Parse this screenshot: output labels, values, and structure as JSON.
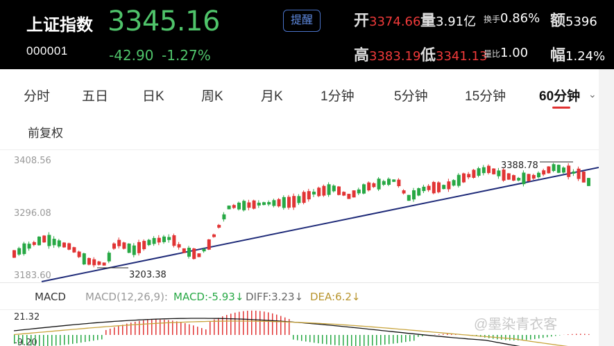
{
  "header": {
    "name": "上证指数",
    "code": "000001",
    "price": "3345.16",
    "change": "-42.90",
    "change_pct": "-1.27%",
    "alert_label": "提醒",
    "stats": {
      "open_label": "开",
      "open_value": "3374.66",
      "volume_label": "量",
      "volume_value": "3.91亿",
      "turnover_label": "换手",
      "turnover_value": "0.86%",
      "amount_label": "额",
      "amount_value": "5396",
      "high_label": "高",
      "high_value": "3383.19",
      "low_label": "低",
      "low_value": "3341.13",
      "ratio_label": "量比",
      "ratio_value": "1.00",
      "amp_label": "幅",
      "amp_value": "1.24%"
    }
  },
  "tabs": [
    "分时",
    "五日",
    "日K",
    "周K",
    "月K",
    "1分钟",
    "5分钟",
    "15分钟",
    "60分钟"
  ],
  "active_tab": "60分钟",
  "adjust_label": "前复权",
  "chart_data": {
    "type": "candlestick",
    "ylim": [
      3183.6,
      3408.56
    ],
    "y_ticks": [
      "3408.56",
      "3296.08",
      "3183.60"
    ],
    "annotations": {
      "low": "3203.38",
      "high": "3388.78"
    },
    "colors": {
      "up": "#e13434",
      "down": "#27a844",
      "trend_line": "#1e2a78",
      "dif": "#111111",
      "dea": "#c8a43c"
    }
  },
  "macd": {
    "title": "MACD",
    "params": "MACD(12,26,9):",
    "macd_value": "MACD:-5.93↓",
    "dif_value": "DIFF:3.23↓",
    "dea_value": "DEA:6.2↓",
    "axis_top": "21.32",
    "axis_bottom": "-9.20"
  },
  "watermark": "@墨染青衣客"
}
